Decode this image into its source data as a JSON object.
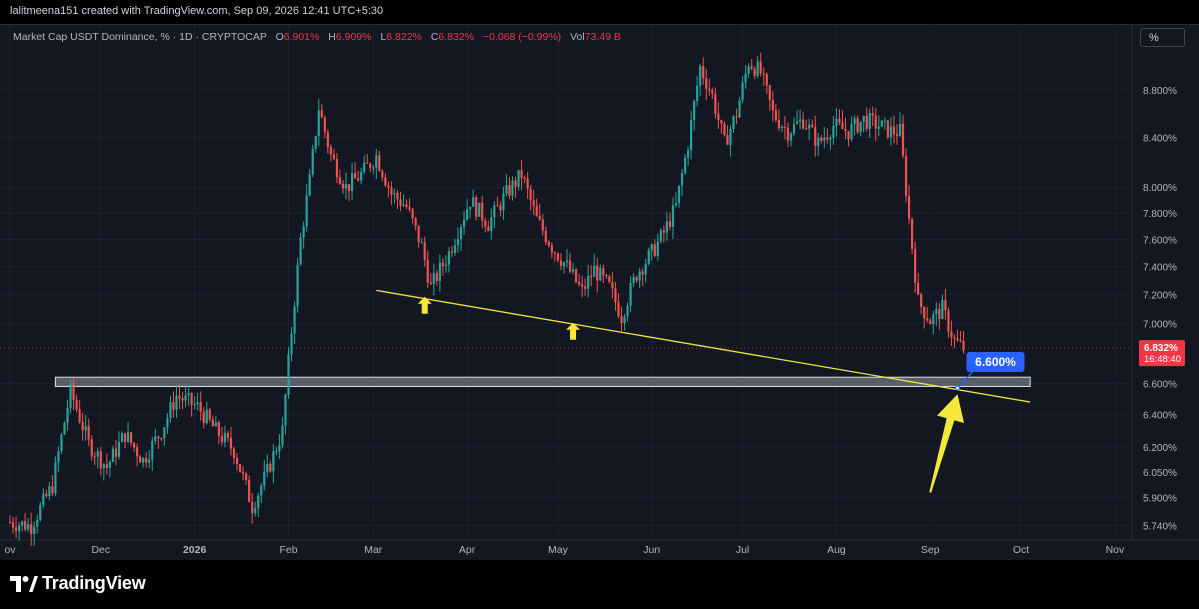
{
  "header": {
    "credit": "lalitmeena151 created with TradingView.com, Sep 09, 2026 12:41 UTC+5:30"
  },
  "legend": {
    "symbol": "Market Cap USDT Dominance, % · 1D · CRYPTOCAP",
    "open_label": "O",
    "open": "6.901%",
    "high_label": "H",
    "high": "6.909%",
    "low_label": "L",
    "low": "6.822%",
    "close_label": "C",
    "close": "6.832%",
    "change": "−0.068 (−0.99%)",
    "vol_label": "Vol",
    "vol": "73.49 B"
  },
  "scale_button": "%",
  "footer": {
    "brand": "TradingView"
  },
  "colors": {
    "up": "#26a69a",
    "down": "#ef5350",
    "trendline": "#f0e442",
    "arrow": "#f5e839",
    "callout": "#2962ff",
    "price_tag": "#f23645",
    "zone_fill": "#9598a1",
    "background": "#131722",
    "grid": "#1c2030"
  },
  "chart_data": {
    "type": "candlestick",
    "y_scale": "log",
    "y_ticks": [
      "8.800%",
      "8.400%",
      "8.000%",
      "7.800%",
      "7.600%",
      "7.400%",
      "7.200%",
      "7.000%",
      "6.600%",
      "6.400%",
      "6.200%",
      "6.050%",
      "5.900%",
      "5.740%"
    ],
    "y_tick_values": [
      8.8,
      8.4,
      8.0,
      7.8,
      7.6,
      7.4,
      7.2,
      7.0,
      6.6,
      6.4,
      6.2,
      6.05,
      5.9,
      5.74
    ],
    "x_ticks": [
      {
        "label": "ov",
        "date": "2025-11-01"
      },
      {
        "label": "Dec",
        "date": "2025-12-01"
      },
      {
        "label": "2026",
        "date": "2026-01-01"
      },
      {
        "label": "Feb",
        "date": "2026-02-01"
      },
      {
        "label": "Mar",
        "date": "2026-03-01"
      },
      {
        "label": "Apr",
        "date": "2026-04-01"
      },
      {
        "label": "May",
        "date": "2026-05-01"
      },
      {
        "label": "Jun",
        "date": "2026-06-01"
      },
      {
        "label": "Jul",
        "date": "2026-07-01"
      },
      {
        "label": "Aug",
        "date": "2026-08-01"
      },
      {
        "label": "Sep",
        "date": "2026-09-01"
      },
      {
        "label": "Oct",
        "date": "2026-10-01"
      },
      {
        "label": "Nov",
        "date": "2026-11-01"
      }
    ],
    "x_range": [
      "2025-11-01",
      "2026-11-04"
    ],
    "y_range": [
      5.66,
      9.38
    ],
    "last_price": {
      "value": 6.832,
      "label": "6.832%",
      "countdown": "16:48:40"
    },
    "support_zone": {
      "start": "2025-11-16",
      "end": "2026-10-04",
      "low": 6.58,
      "high": 6.64
    },
    "trendline": {
      "start_date": "2026-03-02",
      "start_value": 7.23,
      "end_date": "2026-10-04",
      "end_value": 6.48
    },
    "callout": {
      "label": "6.600%",
      "date": "2026-09-10",
      "value": 6.57
    },
    "arrow_markers": [
      {
        "date": "2026-03-18",
        "value": 7.15
      },
      {
        "date": "2026-05-06",
        "value": 6.97
      }
    ],
    "big_arrow": {
      "from_date": "2026-09-01",
      "from_value": 5.93,
      "to_date": "2026-09-10",
      "to_value": 6.53
    },
    "price_path": [
      [
        "2025-11-01",
        5.76
      ],
      [
        "2025-11-08",
        5.74
      ],
      [
        "2025-11-15",
        5.97
      ],
      [
        "2025-11-21",
        6.55
      ],
      [
        "2025-11-27",
        6.22
      ],
      [
        "2025-12-03",
        6.08
      ],
      [
        "2025-12-09",
        6.28
      ],
      [
        "2025-12-15",
        6.12
      ],
      [
        "2025-12-21",
        6.3
      ],
      [
        "2025-12-26",
        6.52
      ],
      [
        "2026-01-02",
        6.45
      ],
      [
        "2026-01-08",
        6.3
      ],
      [
        "2026-01-14",
        6.18
      ],
      [
        "2026-01-20",
        5.85
      ],
      [
        "2026-01-25",
        6.05
      ],
      [
        "2026-01-30",
        6.3
      ],
      [
        "2026-02-02",
        6.95
      ],
      [
        "2026-02-05",
        7.6
      ],
      [
        "2026-02-08",
        8.05
      ],
      [
        "2026-02-11",
        8.65
      ],
      [
        "2026-02-15",
        8.25
      ],
      [
        "2026-02-20",
        8.0
      ],
      [
        "2026-02-25",
        8.1
      ],
      [
        "2026-03-02",
        8.25
      ],
      [
        "2026-03-07",
        7.95
      ],
      [
        "2026-03-12",
        7.85
      ],
      [
        "2026-03-17",
        7.55
      ],
      [
        "2026-03-20",
        7.25
      ],
      [
        "2026-03-26",
        7.5
      ],
      [
        "2026-04-02",
        7.9
      ],
      [
        "2026-04-08",
        7.72
      ],
      [
        "2026-04-14",
        7.95
      ],
      [
        "2026-04-19",
        8.1
      ],
      [
        "2026-04-24",
        7.75
      ],
      [
        "2026-04-29",
        7.55
      ],
      [
        "2026-05-04",
        7.4
      ],
      [
        "2026-05-09",
        7.22
      ],
      [
        "2026-05-13",
        7.38
      ],
      [
        "2026-05-18",
        7.25
      ],
      [
        "2026-05-22",
        7.05
      ],
      [
        "2026-05-27",
        7.35
      ],
      [
        "2026-06-01",
        7.5
      ],
      [
        "2026-06-05",
        7.65
      ],
      [
        "2026-06-09",
        7.85
      ],
      [
        "2026-06-13",
        8.35
      ],
      [
        "2026-06-17",
        9.0
      ],
      [
        "2026-06-21",
        8.75
      ],
      [
        "2026-06-25",
        8.35
      ],
      [
        "2026-06-29",
        8.6
      ],
      [
        "2026-07-03",
        9.05
      ],
      [
        "2026-07-07",
        8.95
      ],
      [
        "2026-07-11",
        8.6
      ],
      [
        "2026-07-16",
        8.45
      ],
      [
        "2026-07-21",
        8.55
      ],
      [
        "2026-07-26",
        8.35
      ],
      [
        "2026-07-31",
        8.5
      ],
      [
        "2026-08-05",
        8.45
      ],
      [
        "2026-08-10",
        8.55
      ],
      [
        "2026-08-15",
        8.5
      ],
      [
        "2026-08-19",
        8.45
      ],
      [
        "2026-08-22",
        8.45
      ],
      [
        "2026-08-25",
        7.75
      ],
      [
        "2026-08-28",
        7.15
      ],
      [
        "2026-09-01",
        7.02
      ],
      [
        "2026-09-05",
        7.1
      ],
      [
        "2026-09-09",
        6.88
      ],
      [
        "2026-09-12",
        6.832
      ]
    ]
  }
}
